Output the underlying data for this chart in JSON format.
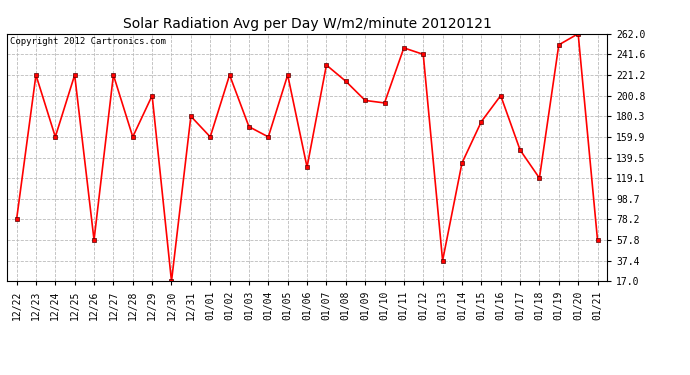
{
  "title": "Solar Radiation Avg per Day W/m2/minute 20120121",
  "copyright": "Copyright 2012 Cartronics.com",
  "dates": [
    "12/22",
    "12/23",
    "12/24",
    "12/25",
    "12/26",
    "12/27",
    "12/28",
    "12/29",
    "12/30",
    "12/31",
    "01/01",
    "01/02",
    "01/03",
    "01/04",
    "01/05",
    "01/06",
    "01/07",
    "01/08",
    "01/09",
    "01/10",
    "01/11",
    "01/12",
    "01/13",
    "01/14",
    "01/15",
    "01/16",
    "01/17",
    "01/18",
    "01/19",
    "01/20",
    "01/21"
  ],
  "values": [
    78.2,
    221.2,
    159.9,
    221.2,
    57.8,
    221.2,
    159.9,
    200.8,
    17.0,
    180.3,
    159.9,
    221.2,
    170.0,
    159.9,
    221.2,
    130.0,
    231.0,
    215.0,
    196.0,
    193.5,
    248.0,
    241.6,
    37.4,
    134.0,
    175.0,
    200.8,
    147.0,
    119.1,
    251.0,
    262.0,
    57.8
  ],
  "y_ticks": [
    17.0,
    37.4,
    57.8,
    78.2,
    98.7,
    119.1,
    139.5,
    159.9,
    180.3,
    200.8,
    221.2,
    241.6,
    262.0
  ],
  "line_color": "#ff0000",
  "marker": "s",
  "marker_size": 3,
  "background_color": "#ffffff",
  "grid_color": "#bbbbbb",
  "title_fontsize": 10,
  "copyright_fontsize": 6.5,
  "tick_fontsize": 7
}
